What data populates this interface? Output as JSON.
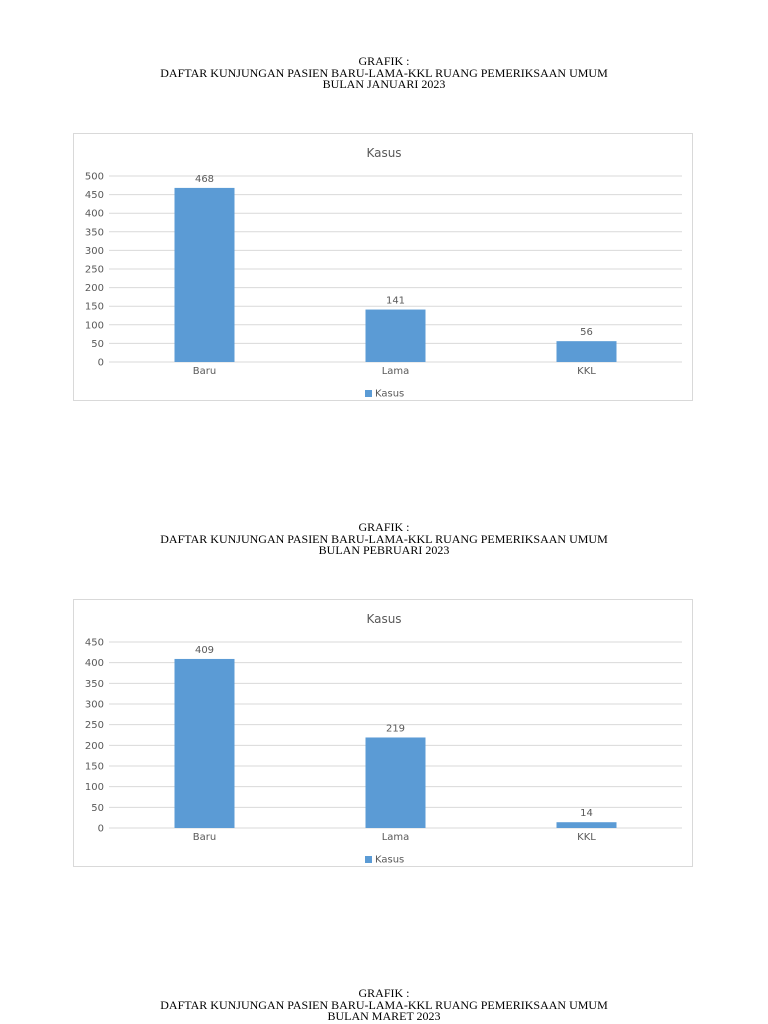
{
  "sections": [
    {
      "heading": {
        "line1": "GRAFIK :",
        "line2": "DAFTAR KUNJUNGAN PASIEN BARU-LAMA-KKL RUANG PEMERIKSAAN UMUM",
        "line3": "BULAN JANUARI 2023"
      }
    },
    {
      "heading": {
        "line1": "GRAFIK :",
        "line2": "DAFTAR KUNJUNGAN PASIEN BARU-LAMA-KKL RUANG PEMERIKSAAN UMUM",
        "line3": "BULAN PEBRUARI 2023"
      }
    },
    {
      "heading": {
        "line1": "GRAFIK :",
        "line2": "DAFTAR KUNJUNGAN PASIEN BARU-LAMA-KKL RUANG PEMERIKSAAN UMUM",
        "line3": "BULAN MARET 2023"
      }
    }
  ],
  "colors": {
    "bar": "#5b9bd5",
    "gridline": "#d9d9d9",
    "text": "#595959"
  },
  "chart_data": [
    {
      "type": "bar",
      "title": "Kasus",
      "categories": [
        "Baru",
        "Lama",
        "KKL"
      ],
      "series": [
        {
          "name": "Kasus",
          "values": [
            468,
            141,
            56
          ]
        }
      ],
      "ylim": [
        0,
        500
      ],
      "yticks": [
        0,
        50,
        100,
        150,
        200,
        250,
        300,
        350,
        400,
        450,
        500
      ],
      "grid": true,
      "data_labels": true,
      "legend": "bottom"
    },
    {
      "type": "bar",
      "title": "Kasus",
      "categories": [
        "Baru",
        "Lama",
        "KKL"
      ],
      "series": [
        {
          "name": "Kasus",
          "values": [
            409,
            219,
            14
          ]
        }
      ],
      "ylim": [
        0,
        450
      ],
      "yticks": [
        0,
        50,
        100,
        150,
        200,
        250,
        300,
        350,
        400,
        450
      ],
      "grid": true,
      "data_labels": true,
      "legend": "bottom"
    }
  ]
}
